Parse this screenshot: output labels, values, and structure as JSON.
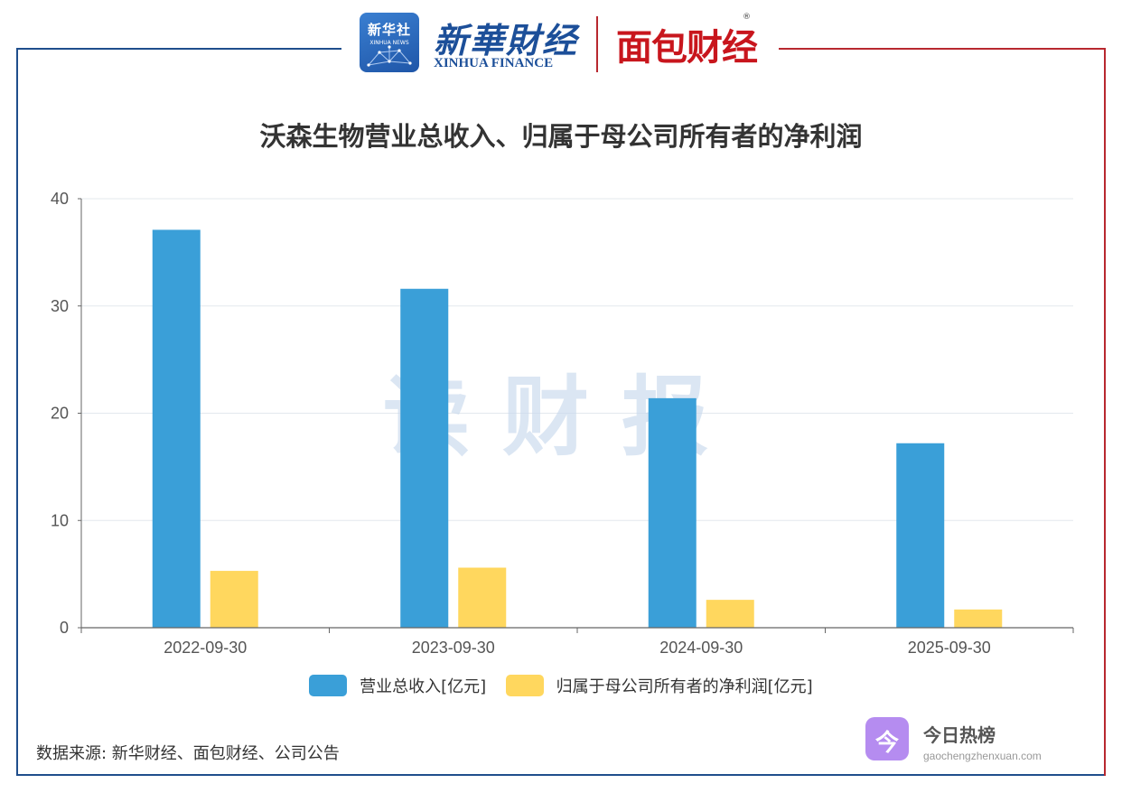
{
  "header": {
    "xinhua_badge_zh": "新华社",
    "xinhua_badge_en": "XINHUA NEWS",
    "xinhua_finance_zh": "新華財经",
    "xinhua_finance_en": "XINHUA FINANCE",
    "mianbao_logo": "面包财经",
    "registered_mark": "®"
  },
  "watermark": "读财报",
  "source_note": "数据来源: 新华财经、面包财经、公司公告",
  "footer_brand": {
    "glyph": "今",
    "name": "今日热榜",
    "url": "gaochengzhenxuan.com"
  },
  "colors": {
    "frame_blue": "#1f4e8c",
    "frame_red": "#b8282f",
    "series_1": "#3a9fd8",
    "series_2": "#ffd75e"
  },
  "chart_data": {
    "type": "bar",
    "title": "沃森生物营业总收入、归属于母公司所有者的净利润",
    "categories": [
      "2022-09-30",
      "2023-09-30",
      "2024-09-30",
      "2025-09-30"
    ],
    "series": [
      {
        "name": "营业总收入[亿元]",
        "values": [
          37.1,
          31.6,
          21.4,
          17.2
        ],
        "color": "#3a9fd8"
      },
      {
        "name": "归属于母公司所有者的净利润[亿元]",
        "values": [
          5.3,
          5.6,
          2.6,
          1.7
        ],
        "color": "#ffd75e"
      }
    ],
    "ylim": [
      0,
      40
    ],
    "yticks": [
      0,
      10,
      20,
      30,
      40
    ],
    "grid": true,
    "legend": "bottom"
  }
}
